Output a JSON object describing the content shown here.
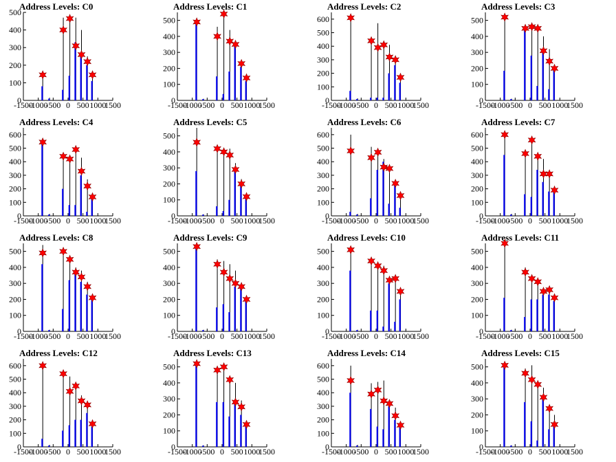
{
  "colors": {
    "black_series": "#000000",
    "blue_series": "#0000ee",
    "marker": "#ff0000"
  },
  "chart_data": [
    {
      "type": "bar",
      "title": "Address Levels: C0",
      "xlim": [
        -1500,
        1500
      ],
      "xticks": [
        -1500,
        -1000,
        -500,
        0,
        500,
        1000,
        1500
      ],
      "ylim": [
        0,
        500
      ],
      "yticks": [
        0,
        100,
        200,
        300,
        400,
        500
      ],
      "x": [
        -850,
        -620,
        -160,
        60,
        260,
        450,
        650,
        820
      ],
      "series": [
        {
          "values": [
            130,
            15,
            470,
            480,
            470,
            400,
            250,
            150
          ]
        },
        {
          "values": [
            80,
            10,
            60,
            140,
            330,
            250,
            200,
            110
          ]
        },
        {
          "values": [
            145,
            null,
            400,
            465,
            310,
            260,
            220,
            145
          ]
        }
      ]
    },
    {
      "type": "bar",
      "title": "Address Levels: C1",
      "xlim": [
        -1500,
        1500
      ],
      "xticks": [
        -1500,
        -1000,
        -500,
        0,
        500,
        1000,
        1500
      ],
      "ylim": [
        0,
        550
      ],
      "yticks": [
        0,
        100,
        200,
        300,
        400,
        500
      ],
      "x": [
        -850,
        -620,
        -160,
        60,
        260,
        450,
        650,
        820
      ],
      "series": [
        {
          "values": [
            500,
            10,
            460,
            540,
            440,
            350,
            240,
            160
          ]
        },
        {
          "values": [
            490,
            8,
            150,
            40,
            180,
            340,
            210,
            120
          ]
        },
        {
          "values": [
            490,
            null,
            400,
            540,
            370,
            350,
            230,
            140
          ]
        }
      ]
    },
    {
      "type": "bar",
      "title": "Address Levels: C2",
      "xlim": [
        -1500,
        1500
      ],
      "xticks": [
        -1500,
        -1000,
        -500,
        0,
        500,
        1000,
        1500
      ],
      "ylim": [
        0,
        650
      ],
      "yticks": [
        0,
        100,
        200,
        300,
        400,
        500,
        600
      ],
      "x": [
        -850,
        -620,
        -160,
        60,
        260,
        450,
        650,
        820
      ],
      "series": [
        {
          "values": [
            610,
            15,
            450,
            570,
            420,
            410,
            310,
            180
          ]
        },
        {
          "values": [
            70,
            10,
            20,
            20,
            20,
            200,
            260,
            130
          ]
        },
        {
          "values": [
            610,
            null,
            440,
            390,
            410,
            320,
            300,
            170
          ]
        }
      ]
    },
    {
      "type": "bar",
      "title": "Address Levels: C3",
      "xlim": [
        -1500,
        1500
      ],
      "xticks": [
        -1500,
        -1000,
        -500,
        0,
        500,
        1000,
        1500
      ],
      "ylim": [
        0,
        550
      ],
      "yticks": [
        0,
        100,
        200,
        300,
        400,
        500
      ],
      "x": [
        -850,
        -620,
        -160,
        60,
        260,
        450,
        650,
        820
      ],
      "series": [
        {
          "values": [
            520,
            10,
            450,
            470,
            440,
            400,
            320,
            210
          ]
        },
        {
          "values": [
            185,
            8,
            440,
            280,
            90,
            300,
            70,
            190
          ]
        },
        {
          "values": [
            520,
            null,
            450,
            460,
            450,
            310,
            245,
            200
          ]
        }
      ]
    },
    {
      "type": "bar",
      "title": "Address Levels: C4",
      "xlim": [
        -1500,
        1500
      ],
      "xticks": [
        -1500,
        -1000,
        -500,
        0,
        500,
        1000,
        1500
      ],
      "ylim": [
        0,
        650
      ],
      "yticks": [
        0,
        100,
        200,
        300,
        400,
        500,
        600
      ],
      "x": [
        -850,
        -620,
        -160,
        60,
        260,
        450,
        650,
        820
      ],
      "series": [
        {
          "values": [
            540,
            15,
            460,
            440,
            490,
            430,
            270,
            150
          ]
        },
        {
          "values": [
            540,
            10,
            200,
            80,
            80,
            300,
            30,
            140
          ]
        },
        {
          "values": [
            545,
            null,
            440,
            420,
            490,
            330,
            220,
            140
          ]
        }
      ]
    },
    {
      "type": "bar",
      "title": "Address Levels: C5",
      "xlim": [
        -1500,
        1500
      ],
      "xticks": [
        -1500,
        -1000,
        -500,
        0,
        500,
        1000,
        1500
      ],
      "ylim": [
        0,
        550
      ],
      "yticks": [
        0,
        100,
        200,
        300,
        400,
        500
      ],
      "x": [
        -850,
        -620,
        -160,
        60,
        260,
        450,
        650,
        820
      ],
      "series": [
        {
          "values": [
            550,
            10,
            440,
            420,
            420,
            330,
            230,
            140
          ]
        },
        {
          "values": [
            280,
            8,
            60,
            30,
            100,
            280,
            210,
            130
          ]
        },
        {
          "values": [
            460,
            null,
            420,
            400,
            380,
            290,
            200,
            120
          ]
        }
      ]
    },
    {
      "type": "bar",
      "title": "Address Levels: C6",
      "xlim": [
        -1500,
        1500
      ],
      "xticks": [
        -1500,
        -1000,
        -500,
        0,
        500,
        1000,
        1500
      ],
      "ylim": [
        0,
        650
      ],
      "yticks": [
        0,
        100,
        200,
        300,
        400,
        500,
        600
      ],
      "x": [
        -850,
        -620,
        -160,
        60,
        260,
        450,
        650,
        820
      ],
      "series": [
        {
          "values": [
            600,
            15,
            510,
            480,
            420,
            360,
            260,
            160
          ]
        },
        {
          "values": [
            30,
            10,
            130,
            340,
            400,
            90,
            250,
            60
          ]
        },
        {
          "values": [
            480,
            null,
            430,
            470,
            360,
            350,
            240,
            150
          ]
        }
      ]
    },
    {
      "type": "bar",
      "title": "Address Levels: C7",
      "xlim": [
        -1500,
        1500
      ],
      "xticks": [
        -1500,
        -1000,
        -500,
        0,
        500,
        1000,
        1500
      ],
      "ylim": [
        0,
        650
      ],
      "yticks": [
        0,
        100,
        200,
        300,
        400,
        500,
        600
      ],
      "x": [
        -850,
        -620,
        -160,
        60,
        260,
        450,
        650,
        820
      ],
      "series": [
        {
          "values": [
            600,
            15,
            470,
            560,
            440,
            420,
            320,
            200
          ]
        },
        {
          "values": [
            450,
            10,
            160,
            140,
            340,
            250,
            180,
            180
          ]
        },
        {
          "values": [
            600,
            null,
            460,
            560,
            440,
            310,
            310,
            190
          ]
        }
      ]
    },
    {
      "type": "bar",
      "title": "Address Levels: C8",
      "xlim": [
        -1500,
        1500
      ],
      "xticks": [
        -1500,
        -1000,
        -500,
        0,
        500,
        1000,
        1500
      ],
      "ylim": [
        0,
        550
      ],
      "yticks": [
        0,
        100,
        200,
        300,
        400,
        500
      ],
      "x": [
        -850,
        -620,
        -160,
        60,
        260,
        450,
        650,
        820
      ],
      "series": [
        {
          "values": [
            540,
            10,
            520,
            460,
            400,
            380,
            310,
            220
          ]
        },
        {
          "values": [
            420,
            8,
            140,
            320,
            380,
            310,
            230,
            200
          ]
        },
        {
          "values": [
            490,
            null,
            500,
            450,
            370,
            340,
            280,
            210
          ]
        }
      ]
    },
    {
      "type": "bar",
      "title": "Address Levels: C9",
      "xlim": [
        -1500,
        1500
      ],
      "xticks": [
        -1500,
        -1000,
        -500,
        0,
        500,
        1000,
        1500
      ],
      "ylim": [
        0,
        550
      ],
      "yticks": [
        0,
        100,
        200,
        300,
        400,
        500
      ],
      "x": [
        -850,
        -620,
        -160,
        60,
        260,
        450,
        650,
        820
      ],
      "series": [
        {
          "values": [
            550,
            10,
            450,
            440,
            420,
            380,
            290,
            200
          ]
        },
        {
          "values": [
            520,
            8,
            150,
            170,
            120,
            280,
            270,
            190
          ]
        },
        {
          "values": [
            530,
            null,
            420,
            370,
            330,
            300,
            280,
            200
          ]
        }
      ]
    },
    {
      "type": "bar",
      "title": "Address Levels: C10",
      "xlim": [
        -1500,
        1500
      ],
      "xticks": [
        -1500,
        -1000,
        -500,
        0,
        500,
        1000,
        1500
      ],
      "ylim": [
        0,
        550
      ],
      "yticks": [
        0,
        100,
        200,
        300,
        400,
        500
      ],
      "x": [
        -850,
        -620,
        -160,
        60,
        260,
        450,
        650,
        820
      ],
      "series": [
        {
          "values": [
            530,
            10,
            460,
            420,
            410,
            330,
            340,
            250
          ]
        },
        {
          "values": [
            380,
            8,
            130,
            130,
            30,
            300,
            60,
            200
          ]
        },
        {
          "values": [
            510,
            null,
            440,
            410,
            380,
            320,
            330,
            250
          ]
        }
      ]
    },
    {
      "type": "bar",
      "title": "Address Levels: C11",
      "xlim": [
        -1500,
        1500
      ],
      "xticks": [
        -1500,
        -1000,
        -500,
        0,
        500,
        1000,
        1500
      ],
      "ylim": [
        0,
        550
      ],
      "yticks": [
        0,
        100,
        200,
        300,
        400,
        500
      ],
      "x": [
        -850,
        -620,
        -160,
        60,
        260,
        450,
        650,
        820
      ],
      "series": [
        {
          "values": [
            560,
            10,
            400,
            340,
            320,
            270,
            260,
            210
          ]
        },
        {
          "values": [
            210,
            8,
            90,
            200,
            200,
            230,
            230,
            190
          ]
        },
        {
          "values": [
            550,
            null,
            370,
            330,
            310,
            250,
            260,
            210
          ]
        }
      ]
    },
    {
      "type": "bar",
      "title": "Address Levels: C12",
      "xlim": [
        -1500,
        1500
      ],
      "xticks": [
        -1500,
        -1000,
        -500,
        0,
        500,
        1000,
        1500
      ],
      "ylim": [
        0,
        650
      ],
      "yticks": [
        0,
        100,
        200,
        300,
        400,
        500,
        600
      ],
      "x": [
        -850,
        -620,
        -160,
        60,
        260,
        450,
        650,
        820
      ],
      "series": [
        {
          "values": [
            610,
            15,
            550,
            520,
            460,
            380,
            320,
            180
          ]
        },
        {
          "values": [
            60,
            10,
            120,
            160,
            200,
            200,
            250,
            150
          ]
        },
        {
          "values": [
            600,
            null,
            540,
            410,
            450,
            340,
            310,
            170
          ]
        }
      ]
    },
    {
      "type": "bar",
      "title": "Address Levels: C13",
      "xlim": [
        -1500,
        1500
      ],
      "xticks": [
        -1500,
        -1000,
        -500,
        0,
        500,
        1000,
        1500
      ],
      "ylim": [
        0,
        550
      ],
      "yticks": [
        0,
        100,
        200,
        300,
        400,
        500
      ],
      "x": [
        -850,
        -620,
        -160,
        60,
        260,
        450,
        650,
        820
      ],
      "series": [
        {
          "values": [
            520,
            10,
            490,
            500,
            440,
            400,
            290,
            160
          ]
        },
        {
          "values": [
            520,
            8,
            280,
            280,
            190,
            270,
            200,
            130
          ]
        },
        {
          "values": [
            520,
            null,
            480,
            500,
            420,
            280,
            250,
            140
          ]
        }
      ]
    },
    {
      "type": "bar",
      "title": "Address Levels: C14",
      "xlim": [
        -1500,
        1500
      ],
      "xticks": [
        -1500,
        -1000,
        -500,
        0,
        500,
        1000,
        1500
      ],
      "ylim": [
        0,
        650
      ],
      "yticks": [
        0,
        100,
        200,
        300,
        400,
        500,
        600
      ],
      "x": [
        -850,
        -620,
        -160,
        60,
        260,
        450,
        650,
        820
      ],
      "series": [
        {
          "values": [
            600,
            15,
            470,
            480,
            490,
            330,
            290,
            170
          ]
        },
        {
          "values": [
            400,
            10,
            280,
            150,
            130,
            300,
            200,
            160
          ]
        },
        {
          "values": [
            490,
            null,
            390,
            420,
            340,
            320,
            230,
            160
          ]
        }
      ]
    },
    {
      "type": "bar",
      "title": "Address Levels: C15",
      "xlim": [
        -1500,
        1500
      ],
      "xticks": [
        -1500,
        -1000,
        -500,
        0,
        500,
        1000,
        1500
      ],
      "ylim": [
        0,
        550
      ],
      "yticks": [
        0,
        100,
        200,
        300,
        400,
        500
      ],
      "x": [
        -850,
        -620,
        -160,
        60,
        260,
        450,
        650,
        820
      ],
      "series": [
        {
          "values": [
            520,
            10,
            490,
            510,
            410,
            370,
            260,
            200
          ]
        },
        {
          "values": [
            520,
            8,
            280,
            160,
            40,
            320,
            110,
            150
          ]
        },
        {
          "values": [
            510,
            null,
            460,
            420,
            390,
            310,
            240,
            140
          ]
        }
      ]
    }
  ]
}
